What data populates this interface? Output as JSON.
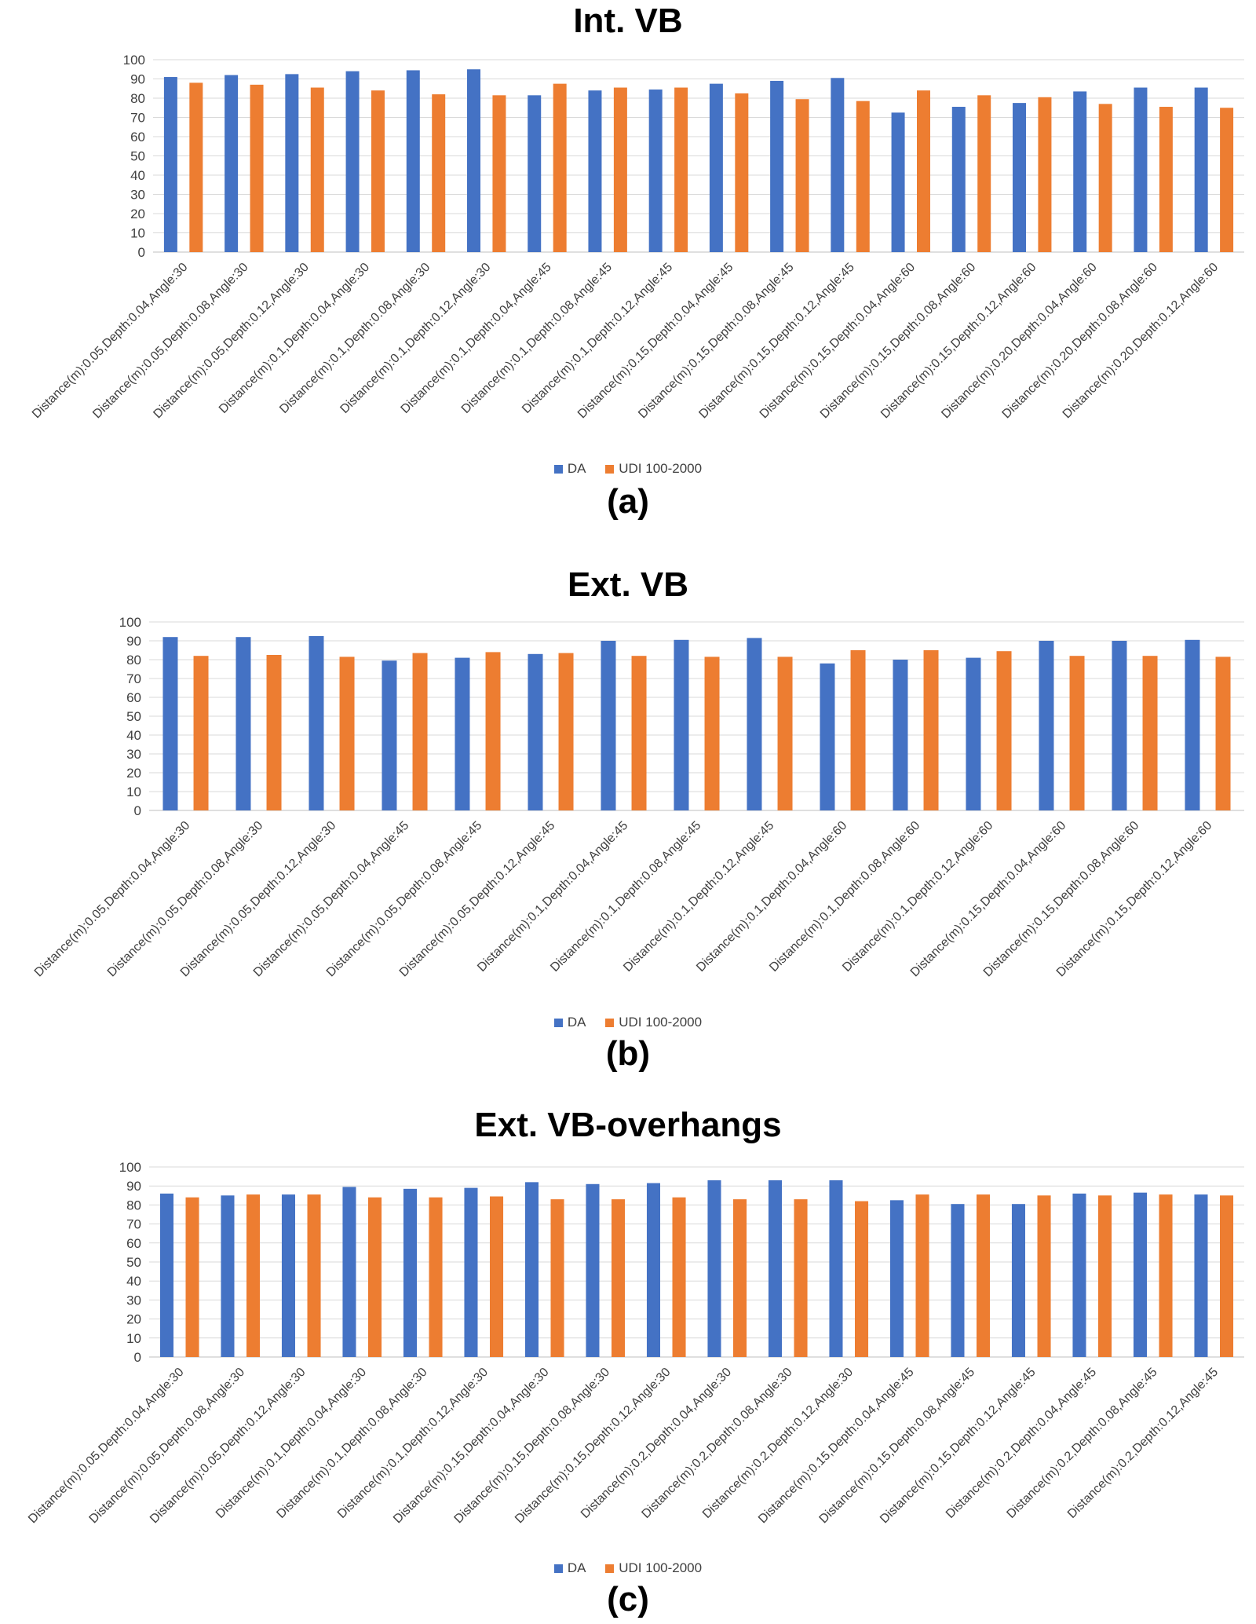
{
  "colors": {
    "da": "#4472C4",
    "udi": "#ED7D31",
    "grid": "#D9D9D9",
    "axis": "#BFBFBF"
  },
  "chart_data": [
    {
      "type": "bar",
      "title": "Int. VB",
      "panel_label": "(a)",
      "ylim": [
        0,
        100
      ],
      "yticks": [
        0,
        10,
        20,
        30,
        40,
        50,
        60,
        70,
        80,
        90,
        100
      ],
      "grid": true,
      "legend_position": "bottom",
      "categories": [
        "Distance(m):0.05,Depth:0.04,Angle:30",
        "Distance(m):0.05,Depth:0.08,Angle:30",
        "Distance(m):0.05,Depth:0.12,Angle:30",
        "Distance(m):0.1,Depth:0.04,Angle:30",
        "Distance(m):0.1,Depth:0.08,Angle:30",
        "Distance(m):0.1,Depth:0.12,Angle:30",
        "Distance(m):0.1,Depth:0.04,Angle:45",
        "Distance(m):0.1,Depth:0.08,Angle:45",
        "Distance(m):0.1,Depth:0.12,Angle:45",
        "Distance(m):0.15,Depth:0.04,Angle:45",
        "Distance(m):0.15,Depth:0.08,Angle:45",
        "Distance(m):0.15,Depth:0.12,Angle:45",
        "Distance(m):0.15,Depth:0.04,Angle:60",
        "Distance(m):0.15,Depth:0.08,Angle:60",
        "Distance(m):0.15,Depth:0.12,Angle:60",
        "Distance(m):0.20,Depth:0.04,Angle:60",
        "Distance(m):0.20,Depth:0.08,Angle:60",
        "Distance(m):0.20,Depth:0.12,Angle:60"
      ],
      "series": [
        {
          "name": "DA",
          "values": [
            91,
            92,
            92.5,
            94,
            94.5,
            95,
            81.5,
            84,
            84.5,
            87.5,
            89,
            90.5,
            72.5,
            75.5,
            77.5,
            83.5,
            85.5,
            85.5
          ]
        },
        {
          "name": "UDI 100-2000",
          "values": [
            88,
            87,
            85.5,
            84,
            82,
            81.5,
            87.5,
            85.5,
            85.5,
            82.5,
            79.5,
            78.5,
            84,
            81.5,
            80.5,
            77,
            75.5,
            75
          ]
        }
      ]
    },
    {
      "type": "bar",
      "title": "Ext. VB",
      "panel_label": "(b)",
      "ylim": [
        0,
        100
      ],
      "yticks": [
        0,
        10,
        20,
        30,
        40,
        50,
        60,
        70,
        80,
        90,
        100
      ],
      "grid": true,
      "legend_position": "bottom",
      "categories": [
        "Distance(m):0.05,Depth:0.04,Angle:30",
        "Distance(m):0.05,Depth:0.08,Angle:30",
        "Distance(m):0.05,Depth:0.12,Angle:30",
        "Distance(m):0.05,Depth:0.04,Angle:45",
        "Distance(m):0.05,Depth:0.08,Angle:45",
        "Distance(m):0.05,Depth:0.12,Angle:45",
        "Distance(m):0.1,Depth:0.04,Angle:45",
        "Distance(m):0.1,Depth:0.08,Angle:45",
        "Distance(m):0.1,Depth:0.12,Angle:45",
        "Distance(m):0.1,Depth:0.04,Angle:60",
        "Distance(m):0.1,Depth:0.08,Angle:60",
        "Distance(m):0.1,Depth:0.12,Angle:60",
        "Distance(m):0.15,Depth:0.04,Angle:60",
        "Distance(m):0.15,Depth:0.08,Angle:60",
        "Distance(m):0.15,Depth:0.12,Angle:60"
      ],
      "series": [
        {
          "name": "DA",
          "values": [
            92,
            92,
            92.5,
            79.5,
            81,
            83,
            90,
            90.5,
            91.5,
            78,
            80,
            81,
            90,
            90,
            90.5
          ]
        },
        {
          "name": "UDI 100-2000",
          "values": [
            82,
            82.5,
            81.5,
            83.5,
            84,
            83.5,
            82,
            81.5,
            81.5,
            85,
            85,
            84.5,
            82,
            82,
            81.5
          ]
        }
      ]
    },
    {
      "type": "bar",
      "title": "Ext. VB-overhangs",
      "panel_label": "(c)",
      "ylim": [
        0,
        100
      ],
      "yticks": [
        0,
        10,
        20,
        30,
        40,
        50,
        60,
        70,
        80,
        90,
        100
      ],
      "grid": true,
      "legend_position": "bottom",
      "categories": [
        "Distance(m):0.05,Depth:0.04,Angle:30",
        "Distance(m):0.05,Depth:0.08,Angle:30",
        "Distance(m):0.05,Depth:0.12,Angle:30",
        "Distance(m):0.1,Depth:0.04,Angle:30",
        "Distance(m):0.1,Depth:0.08,Angle:30",
        "Distance(m):0.1,Depth:0.12,Angle:30",
        "Distance(m):0.15,Depth:0.04,Angle:30",
        "Distance(m):0.15,Depth:0.08,Angle:30",
        "Distance(m):0.15,Depth:0.12,Angle:30",
        "Distance(m):0.2,Depth:0.04,Angle:30",
        "Distance(m):0.2,Depth:0.08,Angle:30",
        "Distance(m):0.2,Depth:0.12,Angle:30",
        "Distance(m):0.15,Depth:0.04,Angle:45",
        "Distance(m):0.15,Depth:0.08,Angle:45",
        "Distance(m):0.15,Depth:0.12,Angle:45",
        "Distance(m):0.2,Depth:0.04,Angle:45",
        "Distance(m):0.2,Depth:0.08,Angle:45",
        "Distance(m):0.2,Depth:0.12,Angle:45"
      ],
      "series": [
        {
          "name": "DA",
          "values": [
            86,
            85,
            85.5,
            89.5,
            88.5,
            89,
            92,
            91,
            91.5,
            93,
            93,
            93,
            82.5,
            80.5,
            80.5,
            86,
            86.5,
            85.5
          ]
        },
        {
          "name": "UDI 100-2000",
          "values": [
            84,
            85.5,
            85.5,
            84,
            84,
            84.5,
            83,
            83,
            84,
            83,
            83,
            82,
            85.5,
            85.5,
            85,
            85,
            85.5,
            85
          ]
        }
      ]
    }
  ]
}
